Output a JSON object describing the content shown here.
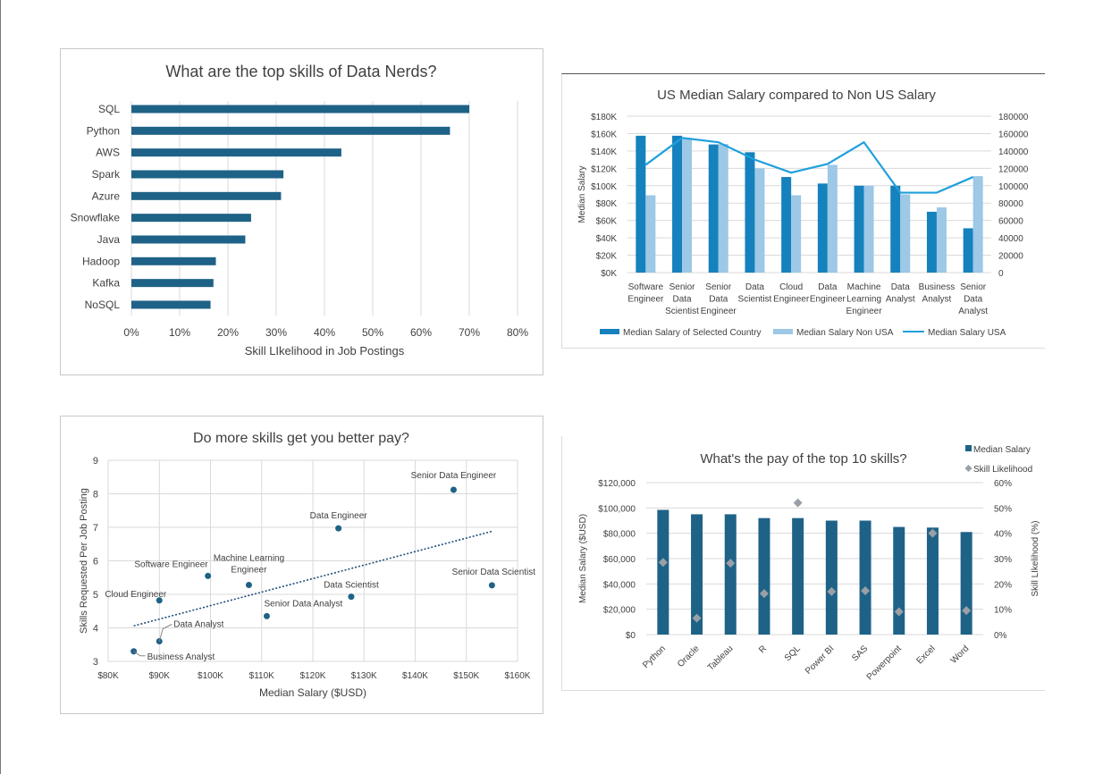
{
  "colors": {
    "dark_bar": "#1f6287",
    "mid_bar": "#1581bd",
    "light_bar": "#9dc8e6",
    "line": "#1fa0dc",
    "grid": "#d9d9d9",
    "text": "#404040",
    "diamond": "#9aa0a6"
  },
  "chart_data": [
    {
      "type": "bar",
      "orientation": "horizontal",
      "title": "What are the top skills of Data Nerds?",
      "xlabel": "Skill LIkelihood in Job Postings",
      "ylabel": "",
      "categories": [
        "SQL",
        "Python",
        "AWS",
        "Spark",
        "Azure",
        "Snowflake",
        "Java",
        "Hadoop",
        "Kafka",
        "NoSQL"
      ],
      "values": [
        0.7,
        0.66,
        0.435,
        0.315,
        0.31,
        0.248,
        0.236,
        0.175,
        0.17,
        0.164
      ],
      "xlim": [
        0,
        0.8
      ],
      "xticks": [
        "0%",
        "10%",
        "20%",
        "30%",
        "40%",
        "50%",
        "60%",
        "70%",
        "80%"
      ],
      "grid": true
    },
    {
      "type": "bar",
      "title": "US Median Salary compared to Non US Salary",
      "ylabel": "Median Salary",
      "categories": [
        "Software Engineer",
        "Senior Data Scientist",
        "Senior Data Engineer",
        "Data Scientist",
        "Cloud Engineer",
        "Data Engineer",
        "Machine Learning Engineer",
        "Data Analyst",
        "Business Analyst",
        "Senior Data Analyst"
      ],
      "category_lines": [
        [
          "Software",
          "Engineer"
        ],
        [
          "Senior",
          "Data",
          "Scientist"
        ],
        [
          "Senior",
          "Data",
          "Engineer"
        ],
        [
          "Data",
          "Scientist"
        ],
        [
          "Cloud",
          "Engineer"
        ],
        [
          "Data",
          "Engineer"
        ],
        [
          "Machine",
          "Learning",
          "Engineer"
        ],
        [
          "Data",
          "Analyst"
        ],
        [
          "Business",
          "Analyst"
        ],
        [
          "Senior",
          "Data",
          "Analyst"
        ]
      ],
      "series": [
        {
          "name": "Median Salary of Selected Country",
          "kind": "bar",
          "values": [
            157500,
            157500,
            147500,
            138500,
            110000,
            102500,
            100000,
            100000,
            70000,
            51000
          ]
        },
        {
          "name": "Median Salary Non USA",
          "kind": "bar",
          "values": [
            89000,
            155000,
            148000,
            120000,
            89000,
            124000,
            100000,
            90000,
            75000,
            111000
          ]
        },
        {
          "name": "Median Salary USA",
          "kind": "line",
          "axis": "secondary",
          "values": [
            124000,
            155000,
            150000,
            130000,
            115000,
            125000,
            150000,
            92000,
            92000,
            110000
          ]
        }
      ],
      "ylim": [
        0,
        180000
      ],
      "yticks": [
        "$0K",
        "$20K",
        "$40K",
        "$60K",
        "$80K",
        "$100K",
        "$120K",
        "$140K",
        "$160K",
        "$180K"
      ],
      "y2lim": [
        0,
        180000
      ],
      "y2ticks": [
        "0",
        "20000",
        "40000",
        "60000",
        "80000",
        "100000",
        "120000",
        "140000",
        "160000",
        "180000"
      ],
      "legend": "bottom",
      "grid": true
    },
    {
      "type": "scatter",
      "title": "Do more skills get you better pay?",
      "xlabel": "Median Salary ($USD)",
      "ylabel": "Skills Requested Per Job Posting",
      "points": [
        {
          "label": "Senior Data Engineer",
          "x": 147500,
          "y": 8.12
        },
        {
          "label": "Data Engineer",
          "x": 125000,
          "y": 6.97
        },
        {
          "label": "Software Engineer",
          "x": 99500,
          "y": 5.55
        },
        {
          "label": "Machine Learning Engineer",
          "x": 107500,
          "y": 5.28
        },
        {
          "label": "Senior Data Scientist",
          "x": 155000,
          "y": 5.27
        },
        {
          "label": "Cloud Engineer",
          "x": 90000,
          "y": 4.82
        },
        {
          "label": "Data Scientist",
          "x": 127500,
          "y": 4.93
        },
        {
          "label": "Senior Data Analyst",
          "x": 111000,
          "y": 4.35
        },
        {
          "label": "Data Analyst",
          "x": 90000,
          "y": 3.6
        },
        {
          "label": "Business Analyst",
          "x": 85000,
          "y": 3.3
        }
      ],
      "trendline": {
        "x": [
          85000,
          155000
        ],
        "y": [
          4.06,
          6.88
        ]
      },
      "xlim": [
        80000,
        160000
      ],
      "xticks": [
        "$80K",
        "$90K",
        "$100K",
        "$110K",
        "$120K",
        "$130K",
        "$140K",
        "$150K",
        "$160K"
      ],
      "ylim": [
        3,
        9
      ],
      "yticks": [
        "3",
        "4",
        "5",
        "6",
        "7",
        "8",
        "9"
      ],
      "grid": true
    },
    {
      "type": "bar",
      "title": "What's the pay of the top 10 skills?",
      "ylabel": "Median Salary ($USD)",
      "y2label": "Skill LIkelihood (%)",
      "categories": [
        "Python",
        "Oracle",
        "Tableau",
        "R",
        "SQL",
        "Power BI",
        "SAS",
        "Powerpoint",
        "Excel",
        "Word"
      ],
      "series": [
        {
          "name": "Median Salary",
          "kind": "bar",
          "values": [
            98500,
            95000,
            95000,
            92000,
            92000,
            90000,
            90000,
            85000,
            84500,
            81000
          ]
        },
        {
          "name": "Skill Likelihood",
          "kind": "scatter",
          "axis": "secondary",
          "values": [
            0.285,
            0.065,
            0.282,
            0.162,
            0.52,
            0.17,
            0.173,
            0.09,
            0.4,
            0.095
          ]
        }
      ],
      "ylim": [
        0,
        120000
      ],
      "yticks": [
        "$0",
        "$20,000",
        "$40,000",
        "$60,000",
        "$80,000",
        "$100,000",
        "$120,000"
      ],
      "y2lim": [
        0,
        0.6
      ],
      "y2ticks": [
        "0%",
        "10%",
        "20%",
        "30%",
        "40%",
        "50%",
        "60%"
      ],
      "legend": "top-right",
      "grid": true
    }
  ]
}
